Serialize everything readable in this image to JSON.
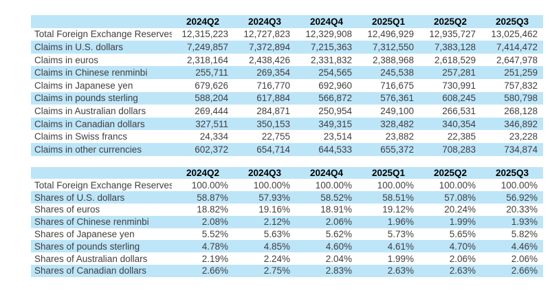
{
  "colors": {
    "band_blue": "#bde5f8",
    "body_text": "#3f3f3f",
    "header_text": "#000000",
    "background": "#ffffff"
  },
  "chart_data": [
    {
      "type": "table",
      "name": "foreign-exchange-reserves-levels",
      "columns": [
        "2024Q2",
        "2024Q3",
        "2024Q4",
        "2025Q1",
        "2025Q2",
        "2025Q3"
      ],
      "rows": [
        {
          "label": "Total Foreign Exchange Reserves",
          "values": [
            "12,315,223",
            "12,727,823",
            "12,329,908",
            "12,496,929",
            "12,935,727",
            "13,025,462"
          ]
        },
        {
          "label": "Claims in U.S. dollars",
          "values": [
            "7,249,857",
            "7,372,894",
            "7,215,363",
            "7,312,550",
            "7,383,128",
            "7,414,472"
          ]
        },
        {
          "label": "Claims in euros",
          "values": [
            "2,318,164",
            "2,438,426",
            "2,331,832",
            "2,388,968",
            "2,618,529",
            "2,647,978"
          ]
        },
        {
          "label": "Claims in Chinese renminbi",
          "values": [
            "255,711",
            "269,354",
            "254,565",
            "245,538",
            "257,281",
            "251,259"
          ]
        },
        {
          "label": "Claims in Japanese yen",
          "values": [
            "679,626",
            "716,770",
            "692,960",
            "716,675",
            "730,991",
            "757,832"
          ]
        },
        {
          "label": "Claims in pounds sterling",
          "values": [
            "588,204",
            "617,884",
            "566,872",
            "576,361",
            "608,245",
            "580,798"
          ]
        },
        {
          "label": "Claims in Australian dollars",
          "values": [
            "269,444",
            "284,871",
            "250,954",
            "249,100",
            "266,531",
            "268,128"
          ]
        },
        {
          "label": "Claims in Canadian dollars",
          "values": [
            "327,511",
            "350,153",
            "349,315",
            "328,482",
            "340,354",
            "346,892"
          ]
        },
        {
          "label": "Claims in Swiss francs",
          "values": [
            "24,334",
            "22,755",
            "23,514",
            "23,882",
            "22,385",
            "23,228"
          ]
        },
        {
          "label": "Claims in other currencies",
          "values": [
            "602,372",
            "654,714",
            "644,533",
            "655,372",
            "708,283",
            "734,874"
          ]
        }
      ]
    },
    {
      "type": "table",
      "name": "foreign-exchange-reserves-shares",
      "columns": [
        "2024Q2",
        "2024Q3",
        "2024Q4",
        "2025Q1",
        "2025Q2",
        "2025Q3"
      ],
      "rows": [
        {
          "label": "Total Foreign Exchange Reserves",
          "values": [
            "100.00%",
            "100.00%",
            "100.00%",
            "100.00%",
            "100.00%",
            "100.00%"
          ]
        },
        {
          "label": "Shares of U.S. dollars",
          "values": [
            "58.87%",
            "57.93%",
            "58.52%",
            "58.51%",
            "57.08%",
            "56.92%"
          ]
        },
        {
          "label": "Shares of euros",
          "values": [
            "18.82%",
            "19.16%",
            "18.91%",
            "19.12%",
            "20.24%",
            "20.33%"
          ]
        },
        {
          "label": "Shares of Chinese renminbi",
          "values": [
            "2.08%",
            "2.12%",
            "2.06%",
            "1.96%",
            "1.99%",
            "1.93%"
          ]
        },
        {
          "label": "Shares of Japanese yen",
          "values": [
            "5.52%",
            "5.63%",
            "5.62%",
            "5.73%",
            "5.65%",
            "5.82%"
          ]
        },
        {
          "label": "Shares of pounds sterling",
          "values": [
            "4.78%",
            "4.85%",
            "4.60%",
            "4.61%",
            "4.70%",
            "4.46%"
          ]
        },
        {
          "label": "Shares of Australian dollars",
          "values": [
            "2.19%",
            "2.24%",
            "2.04%",
            "1.99%",
            "2.06%",
            "2.06%"
          ]
        },
        {
          "label": "Shares of Canadian dollars",
          "values": [
            "2.66%",
            "2.75%",
            "2.83%",
            "2.63%",
            "2.63%",
            "2.66%"
          ]
        }
      ]
    }
  ]
}
